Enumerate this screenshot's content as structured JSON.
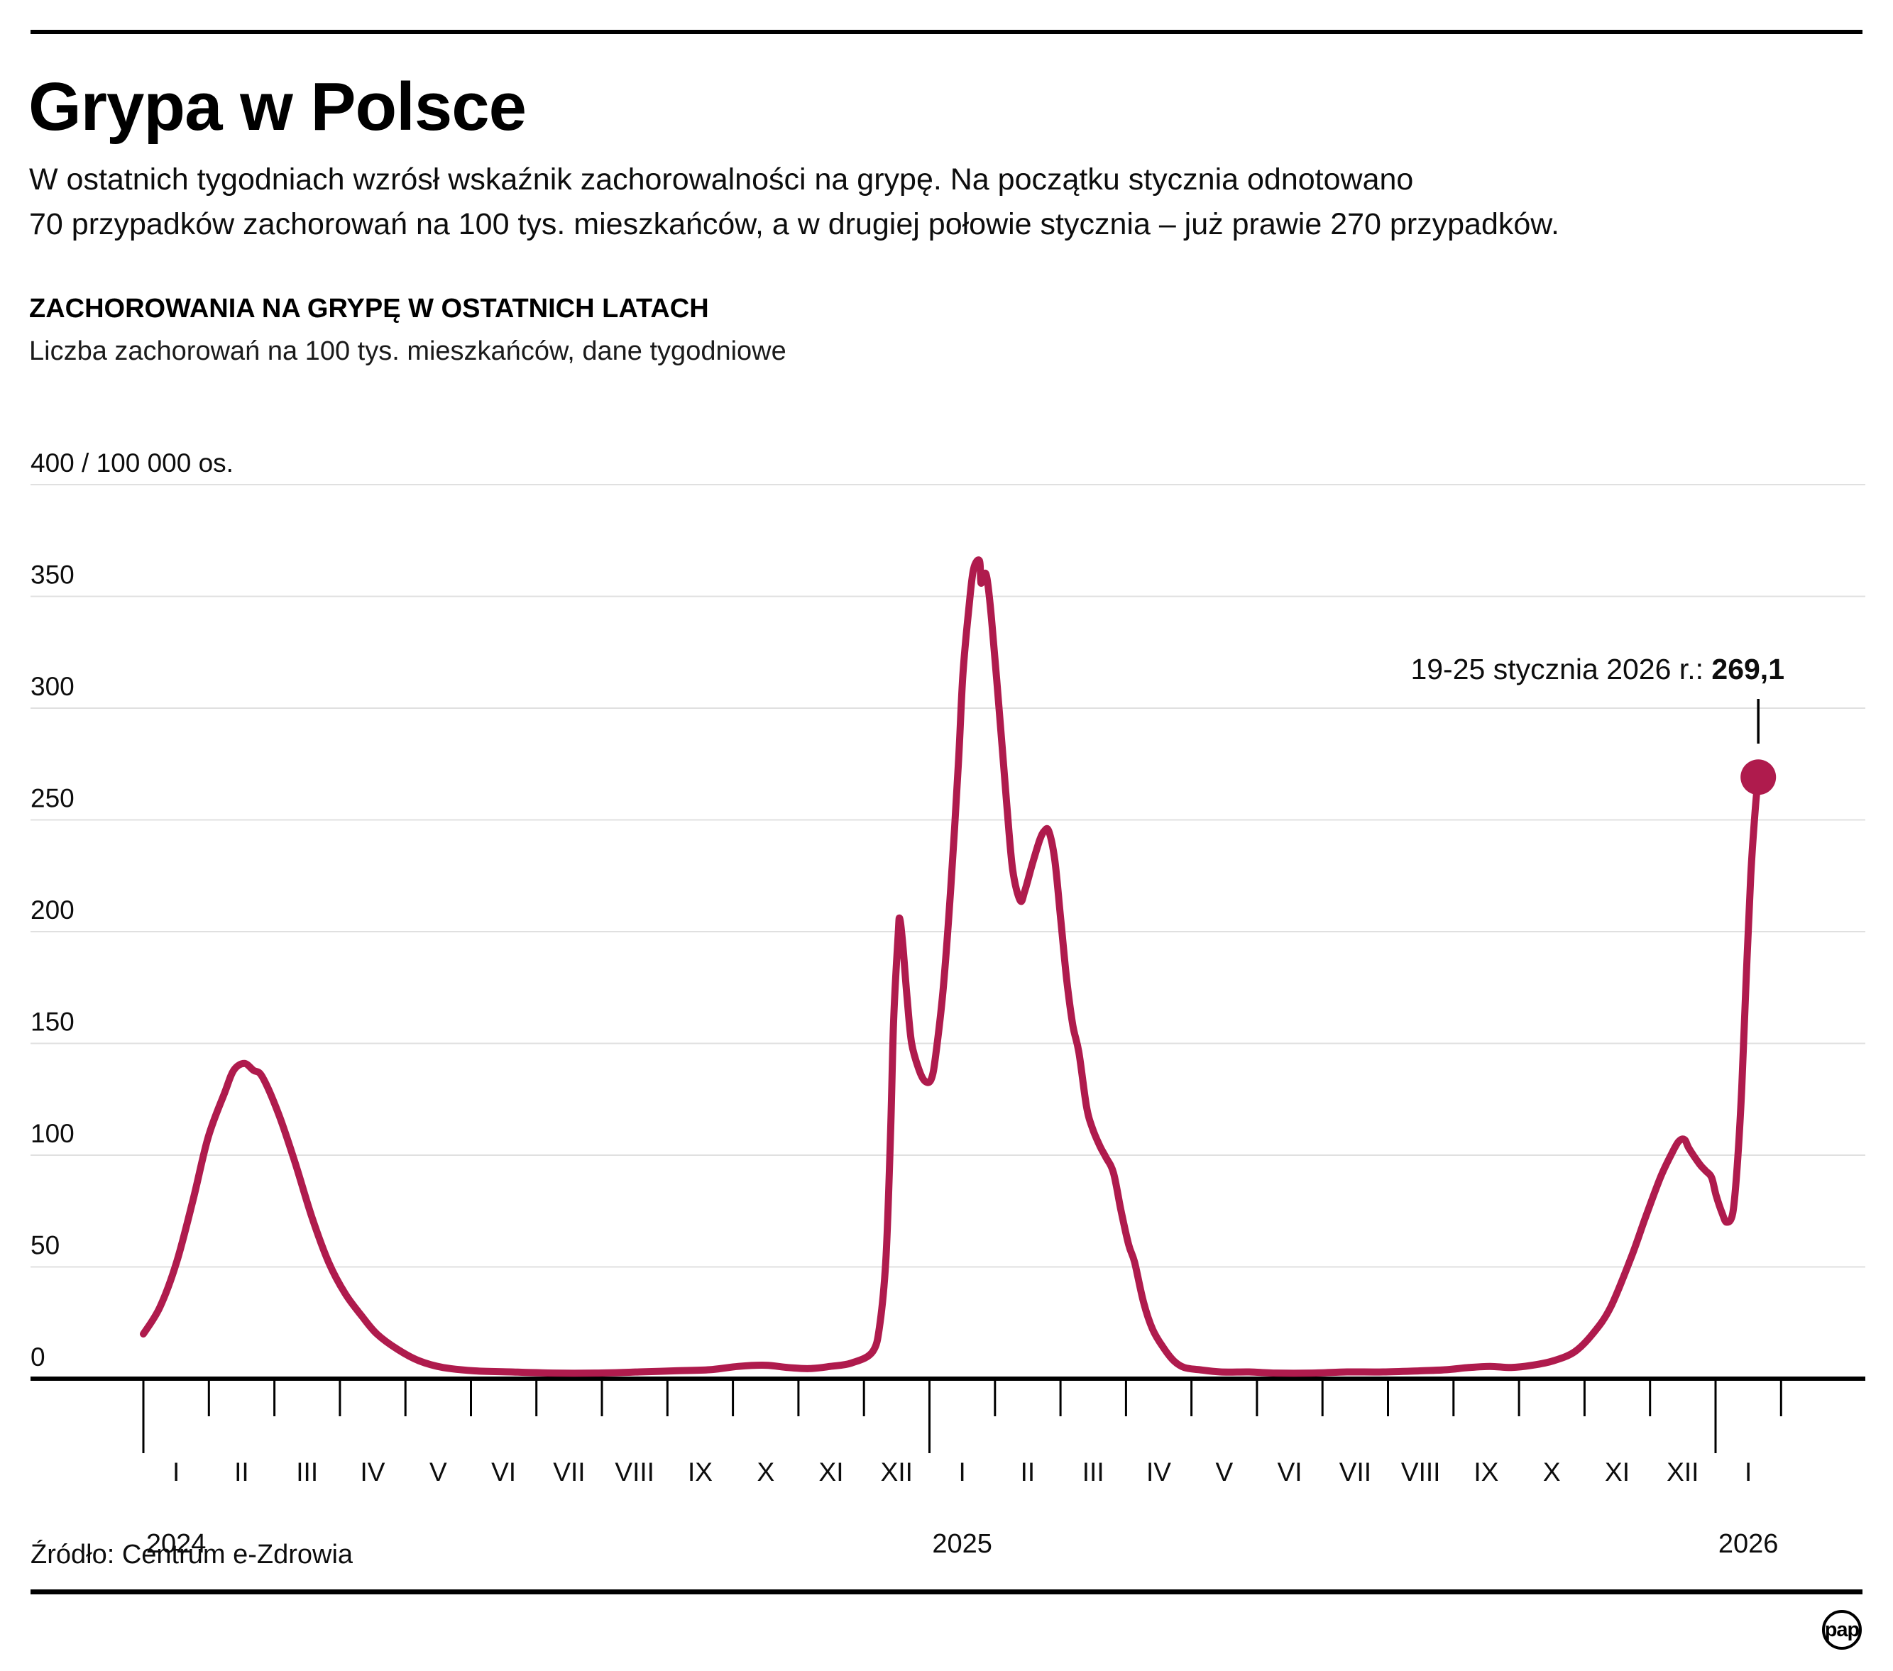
{
  "header": {
    "title": "Grypa w Polsce",
    "intro_line1": "W ostatnich tygodniach wzrósł wskaźnik zachorowalności na grypę. Na początku stycznia odnotowano",
    "intro_line2": "70 przypadków zachorowań na 100 tys. mieszkańców, a w drugiej połowie stycznia – już prawie 270 przypadków."
  },
  "annotation": {
    "label": "19-25 stycznia 2026 r.:",
    "value": "269,1"
  },
  "source": "Źródło: Centrum e-Zdrowia",
  "logo_text": "pap",
  "colors": {
    "line": "#AF1B4D",
    "grid": "#e0e0e0",
    "axis": "#000000",
    "pointer": "#000000"
  },
  "chart_data": {
    "type": "line",
    "title": "ZACHOROWANIA NA GRYPĘ W OSTATNICH LATACH",
    "subtitle": "Liczba zachorowań na 100 tys. mieszkańców, dane tygodniowe",
    "unit_top_label": "400 / 100 000 os.",
    "ylabel": "zachorowania na 100 tys. mieszkańców",
    "ylim": [
      0,
      400
    ],
    "y_ticks": [
      0,
      50,
      100,
      150,
      200,
      250,
      300,
      350
    ],
    "grid": true,
    "month_labels": [
      "I",
      "II",
      "III",
      "IV",
      "V",
      "VI",
      "VII",
      "VIII",
      "IX",
      "X",
      "XI",
      "XII",
      "I",
      "II",
      "III",
      "IV",
      "V",
      "VI",
      "VII",
      "VIII",
      "IX",
      "X",
      "XI",
      "XII",
      "I"
    ],
    "year_labels": [
      {
        "label": "2024",
        "month_index": 0
      },
      {
        "label": "2025",
        "month_index": 12
      },
      {
        "label": "2026",
        "month_index": 24
      }
    ],
    "series_name": "Liczba zachorowań na 100 tys. mieszkańców (tygodniowo)",
    "weeks": [
      0,
      1.1,
      2.2,
      3.3,
      4.3,
      5.4,
      6.0,
      6.7,
      7.3,
      7.9,
      9.0,
      10.1,
      11.2,
      12.3,
      13.4,
      14.5,
      15.5,
      16.9,
      18.3,
      19.9,
      22.0,
      24.4,
      27.2,
      30.0,
      32.9,
      35.2,
      37.6,
      39.5,
      41.3,
      42.8,
      44.2,
      45.6,
      47.0,
      48.4,
      48.9,
      49.3,
      49.6,
      49.8,
      50.1,
      50.2,
      50.4,
      50.7,
      51.0,
      51.5,
      51.9,
      52.3,
      52.6,
      53.1,
      53.6,
      54.1,
      54.4,
      54.8,
      55.1,
      55.5,
      55.6,
      55.8,
      56.0,
      56.3,
      56.8,
      57.3,
      57.7,
      58.2,
      58.5,
      59.0,
      59.5,
      59.8,
      60.1,
      60.5,
      60.9,
      61.3,
      61.7,
      62.1,
      62.6,
      63.0,
      63.5,
      63.9,
      64.4,
      64.9,
      65.4,
      65.8,
      66.4,
      67.0,
      67.7,
      68.4,
      69.1,
      70.1,
      71.5,
      73.4,
      75.2,
      77.6,
      79.9,
      82.3,
      84.7,
      86.5,
      88.0,
      89.4,
      90.8,
      92.2,
      93.6,
      95.0,
      96.2,
      97.4,
      98.8,
      99.7,
      100.7,
      101.4,
      101.9,
      102.3,
      102.6,
      103.3,
      103.7,
      104.1,
      104.4,
      104.8,
      105.1,
      105.5,
      105.8,
      106.1,
      106.4,
      106.7,
      107.0,
      107.2
    ],
    "values": [
      20,
      32,
      52,
      80,
      108,
      128,
      138,
      141,
      138,
      135,
      118,
      96,
      72,
      52,
      38,
      28,
      20,
      13,
      8,
      5,
      3.5,
      3,
      2.5,
      2.5,
      3,
      3.5,
      4,
      5.5,
      6,
      5,
      4.5,
      5.5,
      7,
      12,
      25,
      55,
      110,
      160,
      198,
      206,
      195,
      170,
      150,
      138,
      133,
      134,
      145,
      175,
      220,
      275,
      315,
      345,
      362,
      366,
      356,
      360,
      358,
      340,
      300,
      258,
      228,
      214,
      218,
      230,
      241,
      245,
      245,
      232,
      205,
      178,
      158,
      146,
      122,
      112,
      104,
      99,
      92,
      75,
      60,
      52,
      34,
      22,
      14,
      8,
      5,
      4,
      3,
      3,
      2.5,
      2.5,
      3,
      3,
      3.5,
      4,
      5,
      5.5,
      5,
      6,
      8,
      12,
      20,
      32,
      55,
      72,
      90,
      100,
      106,
      107,
      103,
      96,
      93,
      90,
      82,
      74,
      70,
      74,
      95,
      130,
      180,
      225,
      255,
      269.1
    ],
    "highlight": {
      "week": 107.2,
      "value": 269.1,
      "label": "19-25 stycznia 2026 r.: 269,1"
    }
  }
}
